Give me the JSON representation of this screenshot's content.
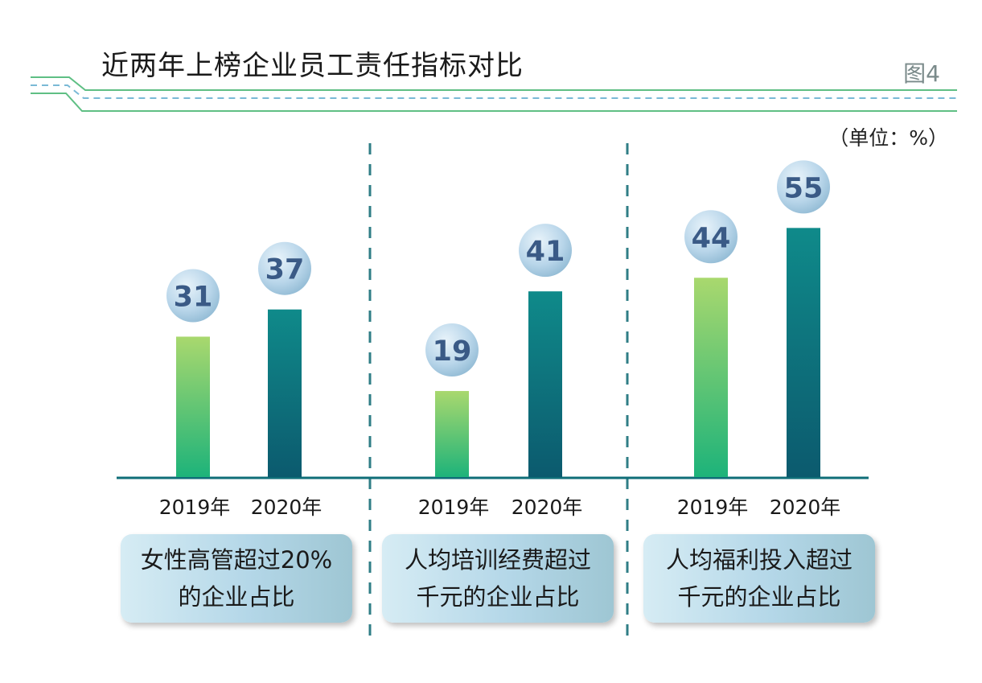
{
  "title": "近两年上榜企业员工责任指标对比",
  "figure_label": "图4",
  "unit_label": "（单位：%）",
  "colors": {
    "bar_2019_top": "#a9d86e",
    "bar_2019_bottom": "#1db37a",
    "bar_2020_top": "#0f8a8a",
    "bar_2020_bottom": "#0c5a6e",
    "bubble_text": "#3a5a86",
    "axis": "#0f6e78",
    "guide_green": "#5fbf84",
    "guide_blue": "#7ab9d6"
  },
  "chart_data": {
    "type": "bar",
    "title": "近两年上榜企业员工责任指标对比",
    "unit": "%",
    "series_names": [
      "2019年",
      "2020年"
    ],
    "groups": [
      {
        "label": "女性高管超过20%的企业占比",
        "categories": [
          "2019年",
          "2020年"
        ],
        "values": [
          31,
          37
        ]
      },
      {
        "label": "人均培训经费超过千元的企业占比",
        "categories": [
          "2019年",
          "2020年"
        ],
        "values": [
          19,
          41
        ]
      },
      {
        "label": "人均福利投入超过千元的企业占比",
        "categories": [
          "2019年",
          "2020年"
        ],
        "values": [
          44,
          55
        ]
      }
    ],
    "ylim": [
      0,
      60
    ],
    "grid": false,
    "legend": "none"
  },
  "cards": [
    {
      "line1": "女性高管超过20%",
      "line2": "的企业占比"
    },
    {
      "line1": "人均培训经费超过",
      "line2": "千元的企业占比"
    },
    {
      "line1": "人均福利投入超过",
      "line2": "千元的企业占比"
    }
  ]
}
